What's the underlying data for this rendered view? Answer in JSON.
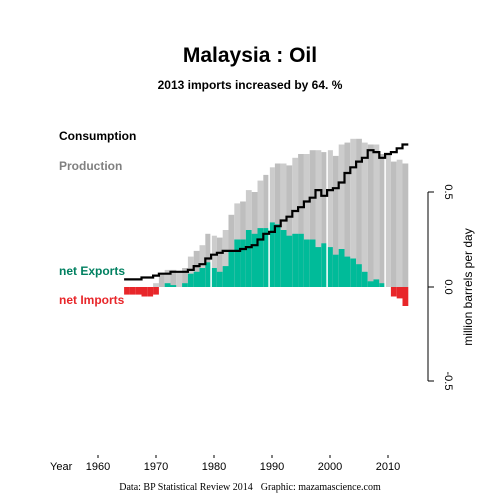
{
  "chart_data": {
    "type": "area",
    "title": "Malaysia :  Oil",
    "subtitle": "2013 imports increased by 64. %",
    "xlabel": "Year",
    "ylabel": "million barrels per day",
    "xlim": [
      1965,
      2013
    ],
    "ylim": [
      -0.5,
      0.8
    ],
    "x_ticks": [
      "1960",
      "1970",
      "1980",
      "1990",
      "2000",
      "2010"
    ],
    "y_ticks": [
      "0.5",
      "0.0",
      "-0.5"
    ],
    "legend": [
      {
        "label": "Consumption",
        "color": "#000000"
      },
      {
        "label": "Production",
        "color": "#808080"
      },
      {
        "label": "net Exports",
        "color": "#008060"
      },
      {
        "label": "net Imports",
        "color": "#e8262a"
      }
    ],
    "colors": {
      "production": "#cccccc",
      "production_alt": "#bebebe",
      "net_exports": "#00bb99",
      "net_imports": "#e8262a",
      "consumption": "#000000"
    },
    "years": [
      1965,
      1966,
      1967,
      1968,
      1969,
      1970,
      1971,
      1972,
      1973,
      1974,
      1975,
      1976,
      1977,
      1978,
      1979,
      1980,
      1981,
      1982,
      1983,
      1984,
      1985,
      1986,
      1987,
      1988,
      1989,
      1990,
      1991,
      1992,
      1993,
      1994,
      1995,
      1996,
      1997,
      1998,
      1999,
      2000,
      2001,
      2002,
      2003,
      2004,
      2005,
      2006,
      2007,
      2008,
      2009,
      2010,
      2011,
      2012,
      2013
    ],
    "production": [
      0.0,
      0.0,
      0.0,
      0.0,
      0.0,
      0.02,
      0.07,
      0.09,
      0.09,
      0.08,
      0.1,
      0.16,
      0.19,
      0.22,
      0.28,
      0.27,
      0.26,
      0.3,
      0.38,
      0.44,
      0.45,
      0.51,
      0.5,
      0.56,
      0.59,
      0.63,
      0.65,
      0.65,
      0.64,
      0.68,
      0.7,
      0.7,
      0.72,
      0.72,
      0.71,
      0.72,
      0.69,
      0.75,
      0.76,
      0.78,
      0.78,
      0.76,
      0.75,
      0.75,
      0.7,
      0.7,
      0.66,
      0.67,
      0.65
    ],
    "consumption": [
      0.04,
      0.04,
      0.04,
      0.05,
      0.05,
      0.06,
      0.07,
      0.07,
      0.08,
      0.08,
      0.08,
      0.09,
      0.11,
      0.12,
      0.15,
      0.17,
      0.18,
      0.19,
      0.19,
      0.19,
      0.2,
      0.21,
      0.22,
      0.25,
      0.28,
      0.29,
      0.32,
      0.35,
      0.37,
      0.4,
      0.42,
      0.45,
      0.47,
      0.51,
      0.48,
      0.51,
      0.52,
      0.55,
      0.6,
      0.63,
      0.66,
      0.68,
      0.72,
      0.71,
      0.68,
      0.7,
      0.71,
      0.73,
      0.75
    ]
  }
}
